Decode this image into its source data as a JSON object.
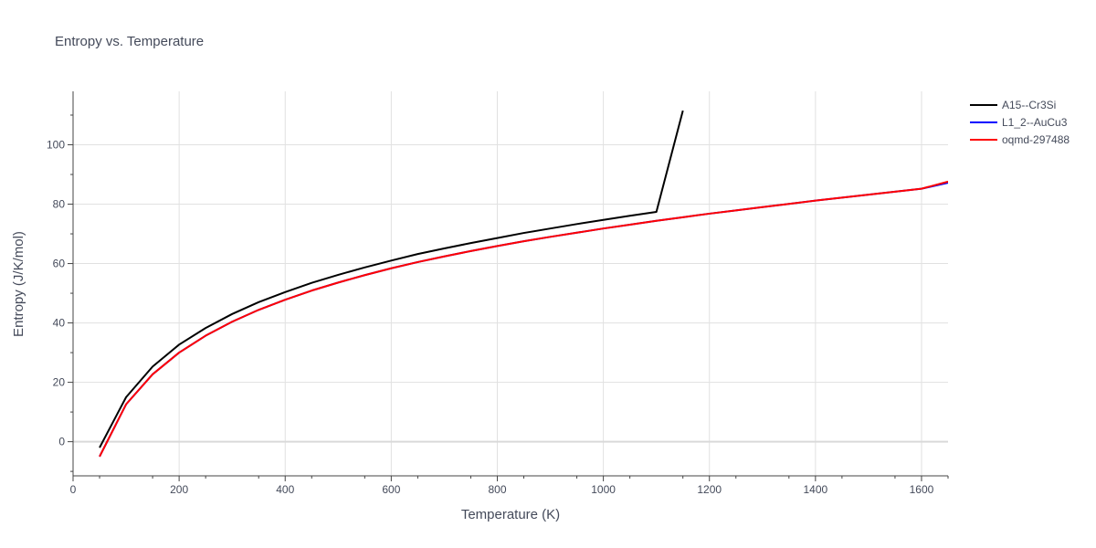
{
  "chart_data": {
    "type": "line",
    "title": "Entropy vs. Temperature",
    "xlabel": "Temperature (K)",
    "ylabel": "Entropy (J/K/mol)",
    "xlim": [
      0,
      1650
    ],
    "ylim": [
      -11.5,
      118
    ],
    "x_ticks": [
      0,
      200,
      400,
      600,
      800,
      1000,
      1200,
      1400,
      1600
    ],
    "y_ticks": [
      0,
      20,
      40,
      60,
      80,
      100
    ],
    "grid": true,
    "legend_position": "top-right",
    "series": [
      {
        "name": "A15--Cr3Si",
        "color": "#000000",
        "x": [
          50,
          100,
          150,
          200,
          250,
          300,
          350,
          400,
          450,
          500,
          550,
          600,
          650,
          700,
          750,
          800,
          850,
          900,
          950,
          1000,
          1050,
          1100,
          1150
        ],
        "y": [
          -2,
          15,
          25.3,
          32.7,
          38.3,
          43,
          47,
          50.4,
          53.5,
          56.2,
          58.7,
          61,
          63.2,
          65.1,
          66.9,
          68.6,
          70.3,
          71.8,
          73.3,
          74.7,
          76.1,
          77.4,
          111.5
        ]
      },
      {
        "name": "L1_2--AuCu3",
        "color": "#0000ff",
        "x": [
          50,
          100,
          150,
          200,
          250,
          300,
          350,
          400,
          450,
          500,
          550,
          600,
          650,
          700,
          750,
          800,
          850,
          900,
          950,
          1000,
          1050,
          1100,
          1150,
          1200,
          1250,
          1300,
          1350,
          1400,
          1450,
          1500,
          1550,
          1600,
          1650
        ],
        "y": [
          -5,
          12.6,
          22.7,
          30,
          35.7,
          40.4,
          44.4,
          47.8,
          50.9,
          53.6,
          56.1,
          58.4,
          60.5,
          62.4,
          64.2,
          65.9,
          67.5,
          69,
          70.4,
          71.8,
          73.1,
          74.4,
          75.6,
          76.8,
          77.9,
          79,
          80.1,
          81.2,
          82.2,
          83.2,
          84.2,
          85.2,
          87.2
        ]
      },
      {
        "name": "oqmd-297488",
        "color": "#ff0000",
        "x": [
          50,
          100,
          150,
          200,
          250,
          300,
          350,
          400,
          450,
          500,
          550,
          600,
          650,
          700,
          750,
          800,
          850,
          900,
          950,
          1000,
          1050,
          1100,
          1150,
          1200,
          1250,
          1300,
          1350,
          1400,
          1450,
          1500,
          1550,
          1600,
          1650
        ],
        "y": [
          -5,
          12.6,
          22.7,
          30,
          35.7,
          40.4,
          44.4,
          47.8,
          50.9,
          53.6,
          56.1,
          58.4,
          60.5,
          62.4,
          64.2,
          65.9,
          67.5,
          69,
          70.4,
          71.8,
          73.1,
          74.4,
          75.6,
          76.8,
          77.9,
          79,
          80.1,
          81.2,
          82.2,
          83.2,
          84.2,
          85.2,
          87.6
        ]
      }
    ]
  }
}
